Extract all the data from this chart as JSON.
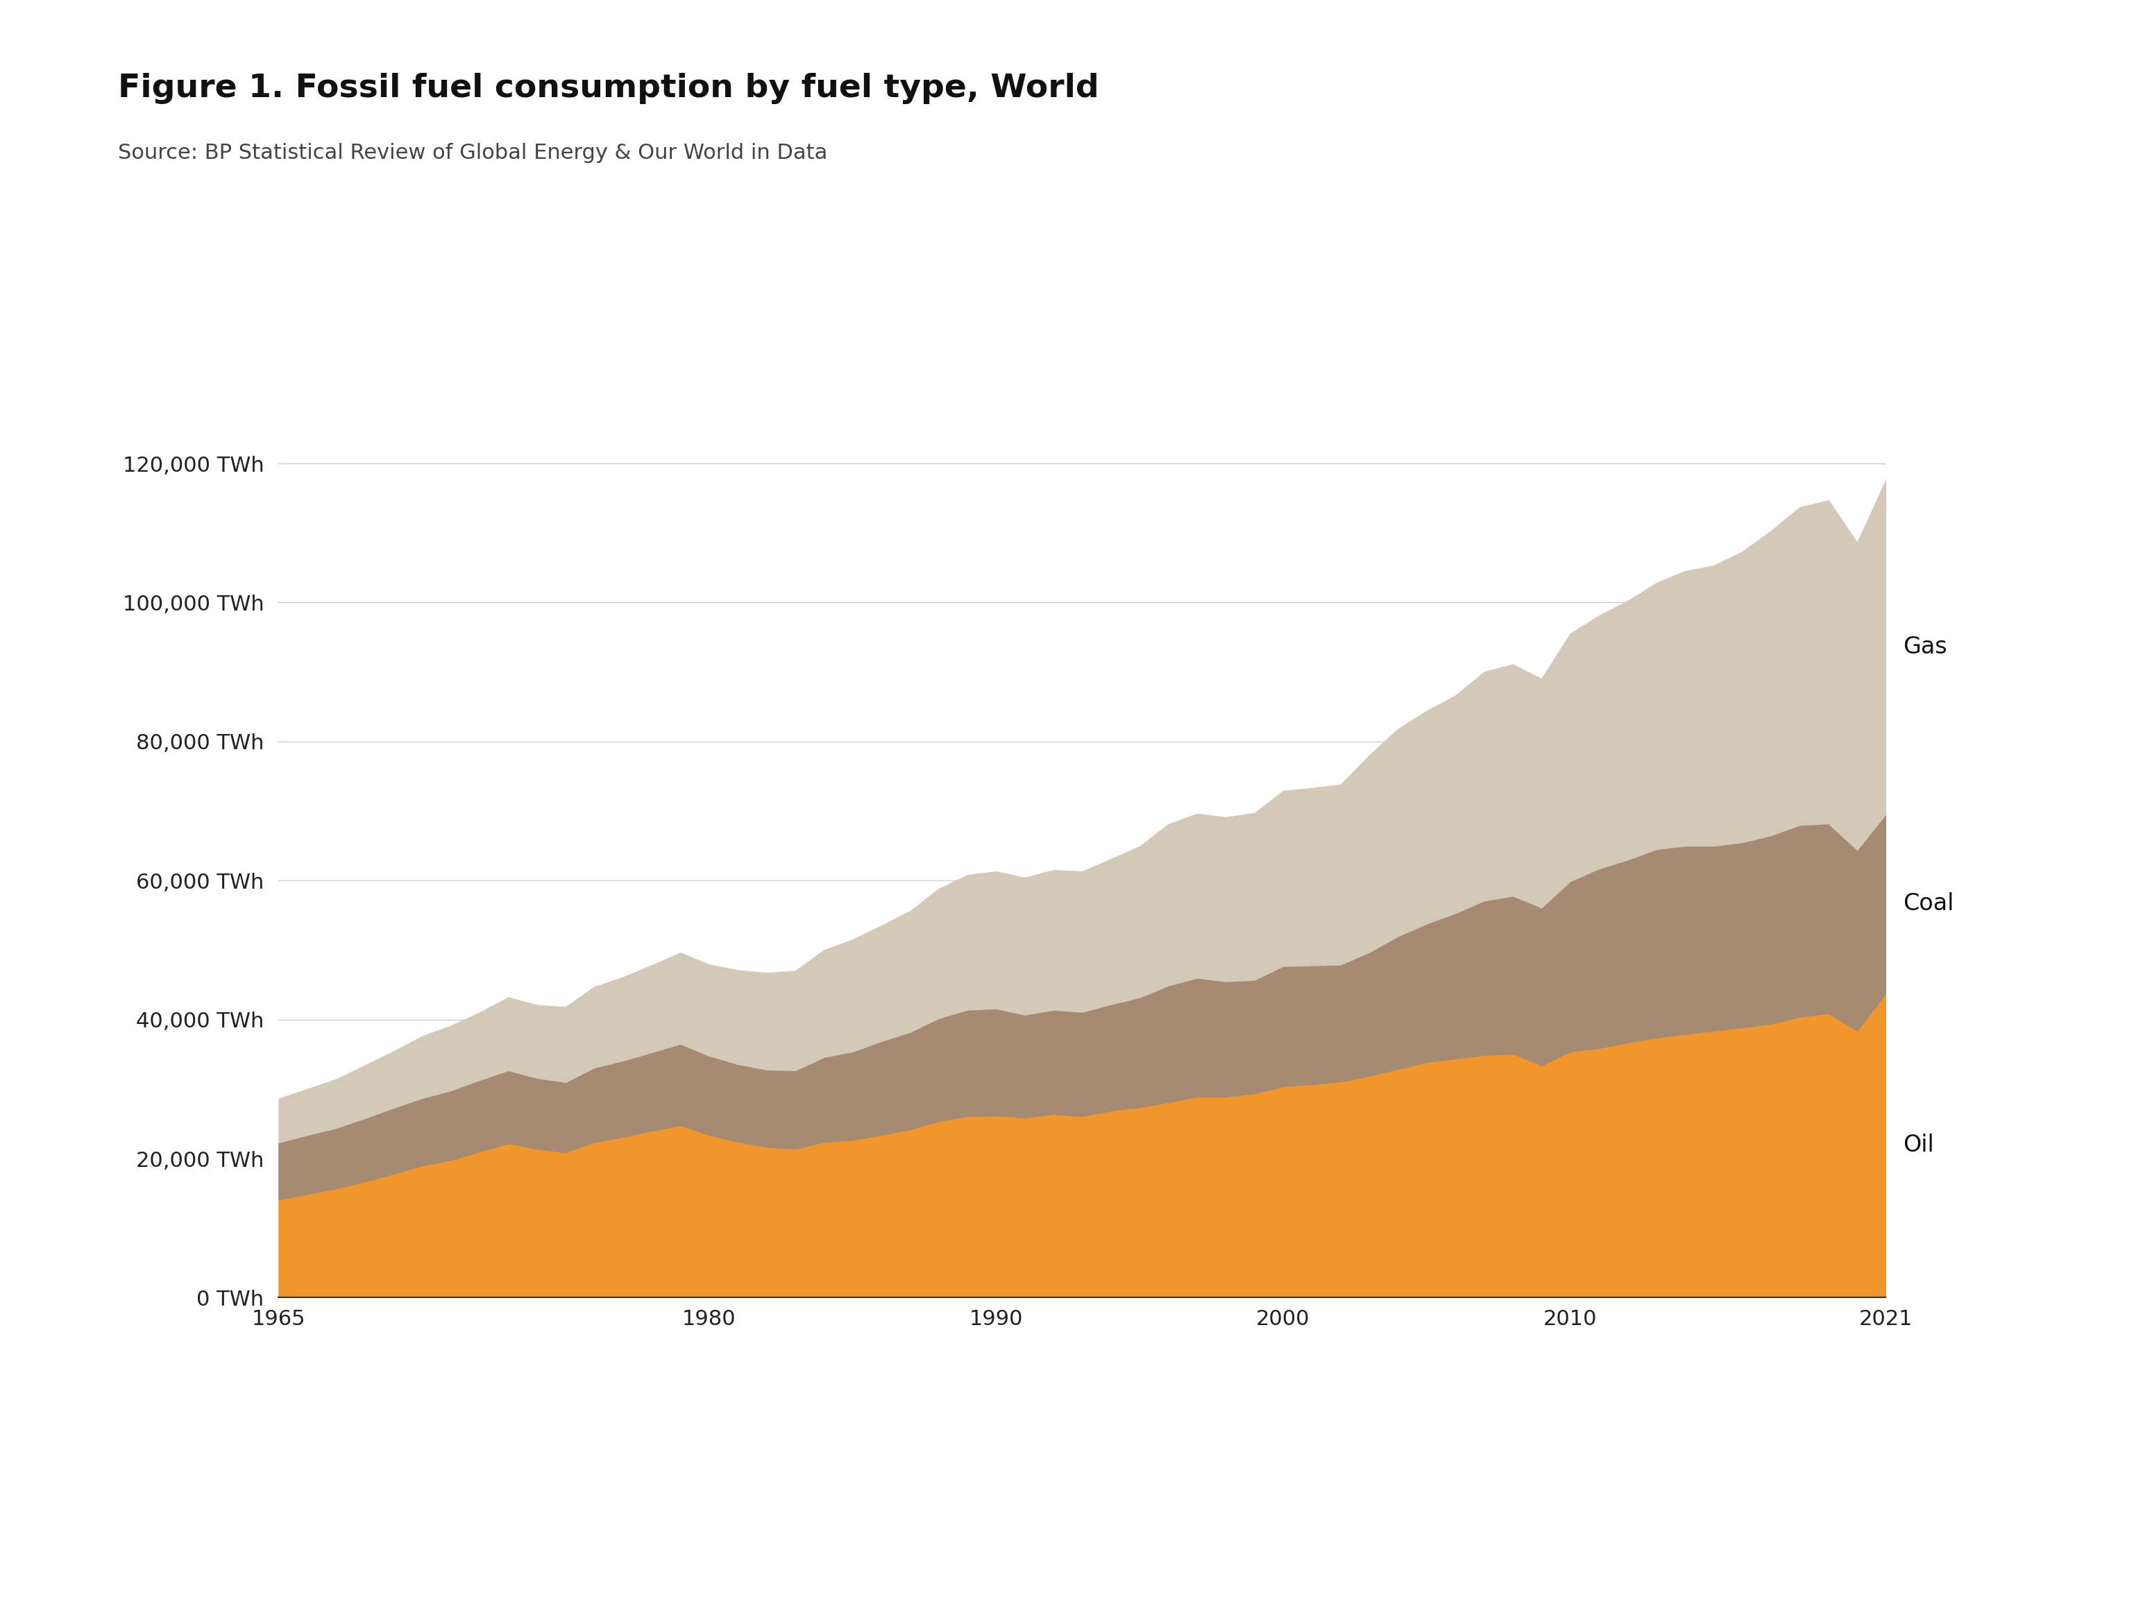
{
  "title": "Figure 1. Fossil fuel consumption by fuel type, World",
  "subtitle": "Source: BP Statistical Review of Global Energy & Our World in Data",
  "background_color": "#ffffff",
  "oil_color": "#F0962A",
  "coal_color": "#A68B72",
  "gas_color": "#D4C9B8",
  "years": [
    1965,
    1966,
    1967,
    1968,
    1969,
    1970,
    1971,
    1972,
    1973,
    1974,
    1975,
    1976,
    1977,
    1978,
    1979,
    1980,
    1981,
    1982,
    1983,
    1984,
    1985,
    1986,
    1987,
    1988,
    1989,
    1990,
    1991,
    1992,
    1993,
    1994,
    1995,
    1996,
    1997,
    1998,
    1999,
    2000,
    2001,
    2002,
    2003,
    2004,
    2005,
    2006,
    2007,
    2008,
    2009,
    2010,
    2011,
    2012,
    2013,
    2014,
    2015,
    2016,
    2017,
    2018,
    2019,
    2020,
    2021
  ],
  "oil": [
    14100,
    14900,
    15700,
    16700,
    17800,
    19000,
    19800,
    21000,
    22200,
    21400,
    20900,
    22400,
    23100,
    24000,
    24800,
    23400,
    22400,
    21700,
    21400,
    22400,
    22700,
    23400,
    24200,
    25400,
    26100,
    26200,
    25900,
    26400,
    26100,
    26900,
    27400,
    28100,
    28900,
    28900,
    29400,
    30400,
    30700,
    31100,
    31900,
    32900,
    33900,
    34400,
    34900,
    35100,
    33400,
    35400,
    35900,
    36700,
    37400,
    37900,
    38400,
    38900,
    39400,
    40400,
    40900,
    38400,
    43800
  ],
  "coal": [
    8200,
    8500,
    8700,
    9100,
    9500,
    9700,
    10000,
    10300,
    10500,
    10200,
    10100,
    10700,
    11000,
    11300,
    11700,
    11400,
    11200,
    11100,
    11300,
    12200,
    12700,
    13500,
    14000,
    14800,
    15300,
    15400,
    14800,
    15000,
    15000,
    15300,
    15800,
    16800,
    17100,
    16600,
    16300,
    17300,
    17100,
    16800,
    17800,
    19100,
    19900,
    20900,
    22200,
    22700,
    22700,
    24500,
    25800,
    26300,
    27100,
    27100,
    26600,
    26600,
    27100,
    27600,
    27300,
    26000,
    25800
  ],
  "gas": [
    6300,
    6600,
    7000,
    7600,
    8100,
    8900,
    9300,
    9700,
    10500,
    10500,
    10800,
    11600,
    12000,
    12500,
    13100,
    13100,
    13500,
    13900,
    14300,
    15400,
    16100,
    16600,
    17400,
    18600,
    19400,
    19700,
    19700,
    20100,
    20200,
    20900,
    21700,
    23200,
    23600,
    23600,
    24000,
    25200,
    25500,
    25900,
    28300,
    29800,
    30600,
    31300,
    32900,
    33300,
    32900,
    35600,
    36400,
    37200,
    38300,
    39500,
    40300,
    41800,
    43800,
    45700,
    46500,
    44200,
    48000
  ],
  "yticks": [
    0,
    20000,
    40000,
    60000,
    80000,
    100000,
    120000
  ],
  "ytick_labels": [
    "0 TWh",
    "20,000 TWh",
    "40,000 TWh",
    "60,000 TWh",
    "80,000 TWh",
    "100,000 TWh",
    "120,000 TWh"
  ],
  "xtick_positions": [
    1965,
    1980,
    1990,
    2000,
    2010,
    2021
  ],
  "xtick_labels": [
    "1965",
    "1980",
    "1990",
    "2000",
    "2010",
    "2021"
  ],
  "ylim": [
    0,
    140000
  ],
  "xlim": [
    1965,
    2021
  ],
  "label_oil": "Oil",
  "label_coal": "Coal",
  "label_gas": "Gas",
  "title_fontsize": 34,
  "subtitle_fontsize": 22,
  "tick_fontsize": 22,
  "label_fontsize": 24
}
